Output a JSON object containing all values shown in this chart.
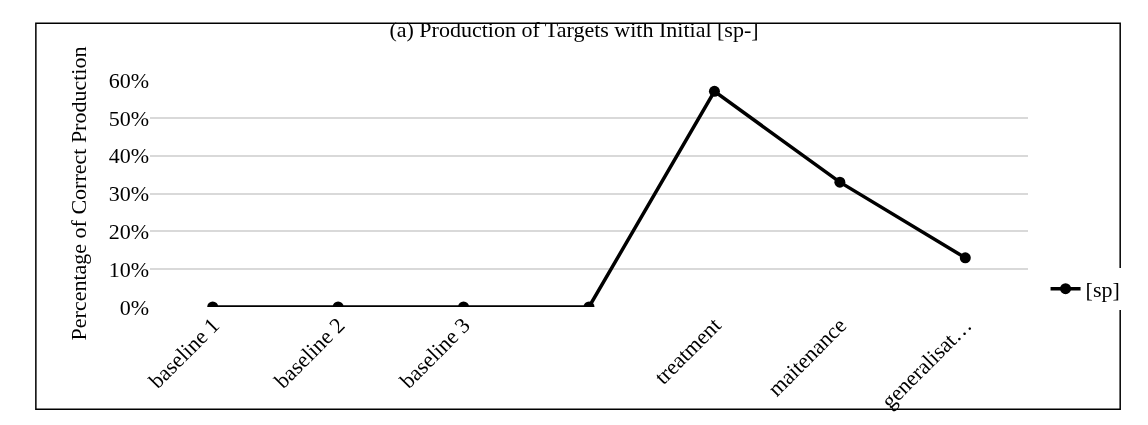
{
  "chart_data": {
    "type": "line",
    "title": "(a) Production of Targets with Initial [sp-]",
    "ylabel": "Percentage of Correct Production",
    "categories": [
      "baseline 1",
      "baseline 2",
      "baseline 3",
      null,
      "treatment",
      "maitenance",
      "generalisat…"
    ],
    "series": [
      {
        "name": "[sp]",
        "color": "#000000",
        "values": [
          0,
          0,
          0,
          0,
          57,
          33,
          13
        ]
      }
    ],
    "ylim": [
      0,
      60
    ],
    "yticks": [
      {
        "value": 0,
        "label": "0%"
      },
      {
        "value": 10,
        "label": "10%"
      },
      {
        "value": 20,
        "label": "20%"
      },
      {
        "value": 30,
        "label": "30%"
      },
      {
        "value": 40,
        "label": "40%"
      },
      {
        "value": 50,
        "label": "50%"
      },
      {
        "value": 60,
        "label": "60%"
      }
    ],
    "grid": "y",
    "legend": "right",
    "marker": "circle",
    "line_style": "solid"
  }
}
